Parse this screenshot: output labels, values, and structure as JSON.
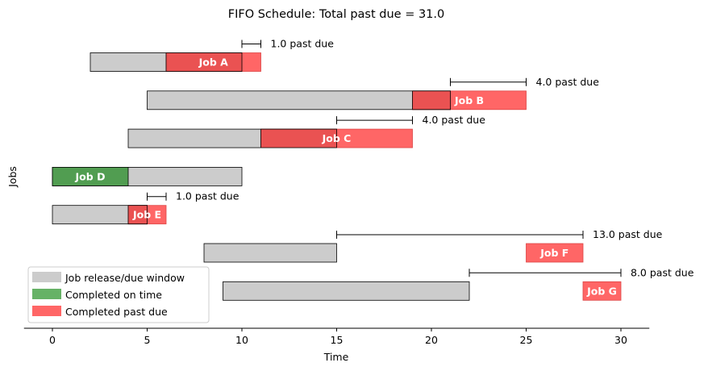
{
  "chart_data": {
    "type": "gantt",
    "title": "FIFO Schedule: Total past due = 31.0",
    "xlabel": "Time",
    "ylabel": "Jobs",
    "xlim": [
      -1.5,
      31.5
    ],
    "xticks": [
      0,
      5,
      10,
      15,
      20,
      25,
      30
    ],
    "legend": {
      "position": "lower-left",
      "entries": [
        {
          "key": "window",
          "label": "Job release/due window"
        },
        {
          "key": "ontime",
          "label": "Completed on time"
        },
        {
          "key": "late",
          "label": "Completed past due"
        }
      ]
    },
    "colors": {
      "window": "#cccccc",
      "ontime": "#4a9a4a",
      "late": "#ff6666",
      "late_overlap": "#ea5252",
      "edge": "#000000"
    },
    "jobs": [
      {
        "name": "Job A",
        "release": 2,
        "due": 10,
        "start": 6,
        "end": 11,
        "past_due": 1.0,
        "past_due_label": "1.0 past due"
      },
      {
        "name": "Job B",
        "release": 5,
        "due": 21,
        "start": 19,
        "end": 25,
        "past_due": 4.0,
        "past_due_label": "4.0 past due"
      },
      {
        "name": "Job C",
        "release": 4,
        "due": 15,
        "start": 11,
        "end": 19,
        "past_due": 4.0,
        "past_due_label": "4.0 past due"
      },
      {
        "name": "Job D",
        "release": 0,
        "due": 10,
        "start": 0,
        "end": 4,
        "past_due": 0,
        "past_due_label": ""
      },
      {
        "name": "Job E",
        "release": 0,
        "due": 5,
        "start": 4,
        "end": 6,
        "past_due": 1.0,
        "past_due_label": "1.0 past due"
      },
      {
        "name": "Job F",
        "release": 8,
        "due": 15,
        "start": 25,
        "end": 28,
        "past_due": 13.0,
        "past_due_label": "13.0 past due"
      },
      {
        "name": "Job G",
        "release": 9,
        "due": 22,
        "start": 28,
        "end": 30,
        "past_due": 8.0,
        "past_due_label": "8.0 past due"
      }
    ]
  }
}
